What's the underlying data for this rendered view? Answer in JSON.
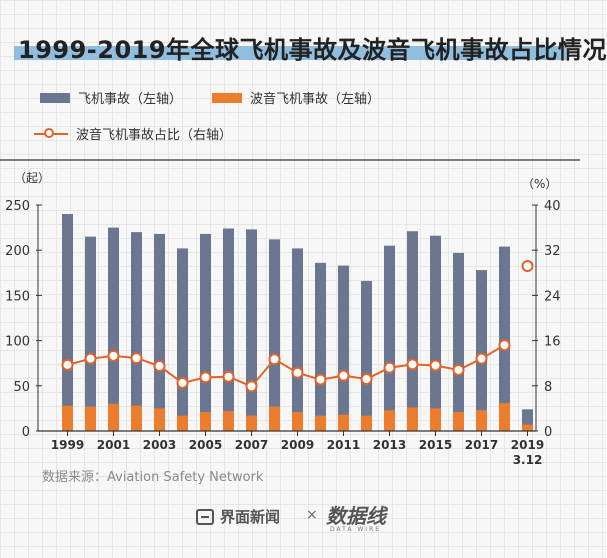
{
  "header": {
    "title": "1999-2019年全球飞机事故及波音飞机事故占比情况"
  },
  "legend": {
    "total_label": "飞机事故（左轴）",
    "boeing_label": "波音飞机事故（左轴）",
    "ratio_label": "波音飞机事故占比（右轴）"
  },
  "axis": {
    "left_unit": "（起）",
    "right_unit": "（%）",
    "left_ticks": [
      "250",
      "200",
      "150",
      "100",
      "50",
      "0"
    ],
    "right_ticks": [
      "40",
      "32",
      "24",
      "16",
      "8",
      "0"
    ],
    "x_ticks": [
      "1999",
      "2001",
      "2003",
      "2005",
      "2007",
      "2009",
      "2011",
      "2013",
      "2015",
      "2017",
      "2019"
    ],
    "x_tick_extra": "3.12"
  },
  "source": "数据来源：Aviation Safety Network",
  "footer": {
    "brand": "界面新闻",
    "cross": "×",
    "logo2": "数据线",
    "logo2_sub": "DATA WIRE"
  },
  "chart_data": {
    "type": "bar",
    "categories": [
      "1999",
      "2000",
      "2001",
      "2002",
      "2003",
      "2004",
      "2005",
      "2006",
      "2007",
      "2008",
      "2009",
      "2010",
      "2011",
      "2012",
      "2013",
      "2014",
      "2015",
      "2016",
      "2017",
      "2018",
      "2019 3.12"
    ],
    "series": [
      {
        "name": "飞机事故（左轴）",
        "type": "bar",
        "axis": "left",
        "values": [
          240,
          215,
          225,
          220,
          218,
          202,
          218,
          224,
          223,
          212,
          202,
          186,
          183,
          166,
          205,
          221,
          216,
          197,
          178,
          204,
          24
        ]
      },
      {
        "name": "波音飞机事故（左轴）",
        "type": "bar",
        "axis": "left",
        "values": [
          28,
          27,
          30,
          28,
          25,
          17,
          21,
          22,
          17,
          27,
          21,
          17,
          18,
          17,
          23,
          26,
          25,
          21,
          23,
          31,
          7
        ]
      },
      {
        "name": "波音飞机事故占比（右轴）",
        "type": "line",
        "axis": "right",
        "values": [
          11.7,
          12.8,
          13.3,
          12.9,
          11.5,
          8.5,
          9.5,
          9.6,
          7.9,
          12.7,
          10.3,
          9.1,
          9.8,
          9.2,
          11.2,
          11.8,
          11.6,
          10.8,
          12.8,
          15.2,
          29.2
        ]
      }
    ],
    "ylim_left": [
      0,
      250
    ],
    "ylim_right": [
      0,
      40
    ],
    "grid": true,
    "legend_position": "top-left",
    "colors": {
      "total": "#6b7790",
      "boeing": "#ec7d2f",
      "ratio": "#e0642a"
    }
  }
}
